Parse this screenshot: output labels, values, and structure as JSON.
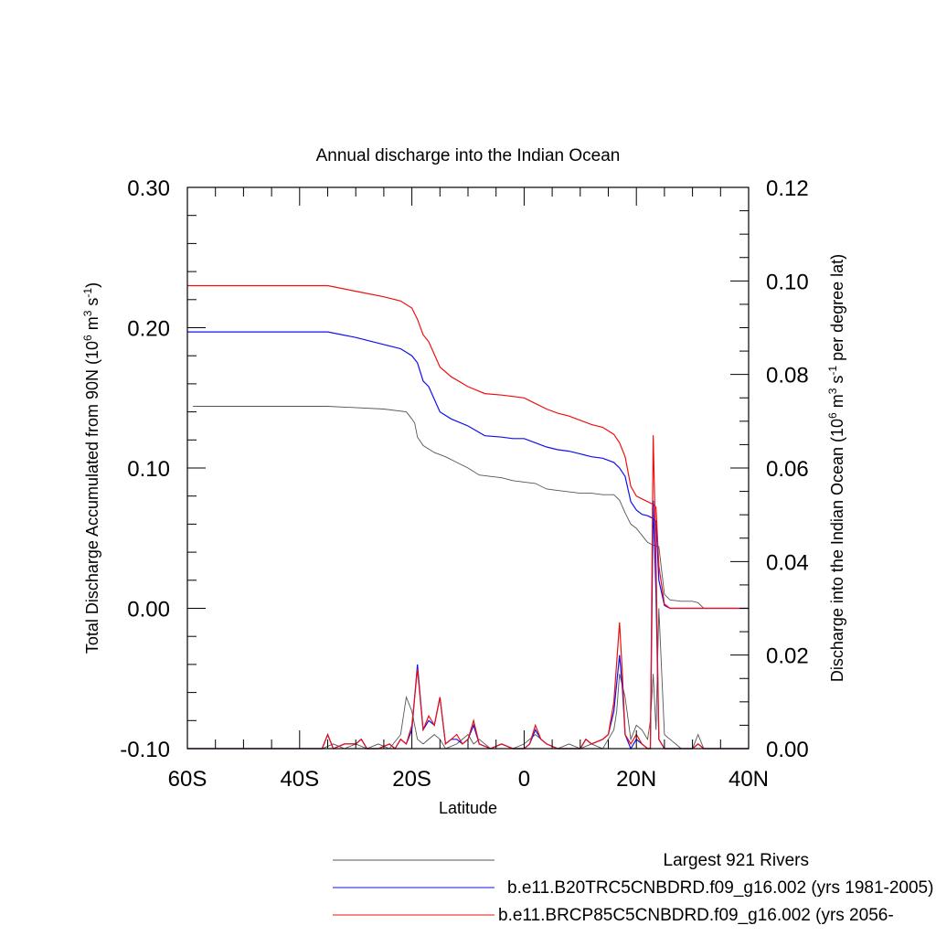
{
  "chart_data": {
    "type": "line",
    "title": "Annual discharge into the Indian Ocean",
    "xlabel": "Latitude",
    "ylabel_left": "Total Discharge Accumulated from 90N (10^6 m^3 s^-1)",
    "ylabel_right": "Discharge into the Indian Ocean (10^6 m^3 s^-1 per degree lat)",
    "xlim": [
      -60,
      40
    ],
    "ylim_left": [
      -0.1,
      0.3
    ],
    "ylim_right": [
      0.0,
      0.12
    ],
    "x_ticks": [
      {
        "value": -60,
        "label": "60S"
      },
      {
        "value": -40,
        "label": "40S"
      },
      {
        "value": -20,
        "label": "20S"
      },
      {
        "value": 0,
        "label": "0"
      },
      {
        "value": 20,
        "label": "20N"
      },
      {
        "value": 40,
        "label": "40N"
      }
    ],
    "y_left_ticks": [
      {
        "value": 0.3,
        "label": "0.30"
      },
      {
        "value": 0.2,
        "label": "0.20"
      },
      {
        "value": 0.1,
        "label": "0.10"
      },
      {
        "value": 0.0,
        "label": "0.00"
      },
      {
        "value": -0.1,
        "label": "-0.10"
      }
    ],
    "y_right_ticks": [
      {
        "value": 0.12,
        "label": "0.12"
      },
      {
        "value": 0.1,
        "label": "0.10"
      },
      {
        "value": 0.08,
        "label": "0.08"
      },
      {
        "value": 0.06,
        "label": "0.06"
      },
      {
        "value": 0.04,
        "label": "0.04"
      },
      {
        "value": 0.02,
        "label": "0.02"
      },
      {
        "value": 0.0,
        "label": "0.00"
      }
    ],
    "grid": false,
    "legend_position": "bottom",
    "series": [
      {
        "name": "Largest 921 Rivers",
        "color": "#555555",
        "axis": "left",
        "x": [
          -59,
          -35,
          -25,
          -21,
          -20,
          -19.5,
          -19,
          -18,
          -16,
          -14,
          -12,
          -10,
          -8,
          -6,
          -4,
          -2,
          0,
          2,
          4,
          6,
          8,
          10,
          12,
          14,
          16,
          17,
          18,
          19,
          20,
          21,
          22,
          23,
          24,
          25,
          26,
          28,
          30,
          31,
          32,
          40
        ],
        "values": [
          0.144,
          0.144,
          0.142,
          0.14,
          0.135,
          0.132,
          0.122,
          0.116,
          0.111,
          0.108,
          0.104,
          0.1,
          0.095,
          0.094,
          0.093,
          0.091,
          0.09,
          0.089,
          0.085,
          0.084,
          0.083,
          0.082,
          0.082,
          0.081,
          0.081,
          0.077,
          0.068,
          0.06,
          0.057,
          0.052,
          0.047,
          0.045,
          0.044,
          0.01,
          0.006,
          0.005,
          0.005,
          0.004,
          0.0,
          0.0
        ]
      },
      {
        "name": "b.e11.B20TRC5CNBDRD.f09_g16.002 (yrs 1981-2005)",
        "color": "#1010ee",
        "axis": "left",
        "x": [
          -60,
          -35,
          -30,
          -25,
          -22,
          -20,
          -19,
          -18,
          -17,
          -15,
          -13,
          -10,
          -7,
          -4,
          -2,
          0,
          2,
          4,
          6,
          8,
          10,
          12,
          14,
          16,
          17,
          18,
          19,
          20,
          21,
          22,
          23,
          23.5,
          24,
          25,
          26,
          40
        ],
        "values": [
          0.197,
          0.197,
          0.193,
          0.188,
          0.185,
          0.18,
          0.175,
          0.162,
          0.158,
          0.14,
          0.135,
          0.13,
          0.123,
          0.122,
          0.121,
          0.121,
          0.118,
          0.115,
          0.113,
          0.112,
          0.11,
          0.108,
          0.107,
          0.104,
          0.1,
          0.094,
          0.076,
          0.07,
          0.067,
          0.066,
          0.064,
          0.062,
          0.02,
          0.002,
          0.0,
          0.0
        ]
      },
      {
        "name": "b.e11.BRCP85C5CNBDRD.f09_g16.002 (yrs 2056-",
        "color": "#ee1010",
        "axis": "left",
        "x": [
          -60,
          -35,
          -30,
          -25,
          -22,
          -20,
          -19,
          -18,
          -17,
          -15,
          -13,
          -10,
          -7,
          -4,
          -2,
          0,
          2,
          4,
          6,
          8,
          10,
          12,
          14,
          16,
          17,
          18,
          19,
          20,
          21,
          22,
          23,
          23.5,
          24,
          25,
          26,
          40
        ],
        "values": [
          0.23,
          0.23,
          0.226,
          0.222,
          0.219,
          0.214,
          0.206,
          0.195,
          0.19,
          0.172,
          0.165,
          0.158,
          0.153,
          0.152,
          0.151,
          0.15,
          0.146,
          0.142,
          0.139,
          0.137,
          0.134,
          0.131,
          0.129,
          0.124,
          0.118,
          0.108,
          0.087,
          0.08,
          0.078,
          0.076,
          0.074,
          0.072,
          0.03,
          0.003,
          0.0,
          0.0
        ]
      },
      {
        "name": "Largest 921 Rivers",
        "color": "#555555",
        "axis": "right",
        "x": [
          -60,
          -36,
          -34,
          -32,
          -30,
          -28,
          -26,
          -24,
          -22,
          -21,
          -20,
          -19,
          -18,
          -16,
          -15,
          -14,
          -12,
          -10,
          -9,
          -8,
          -6,
          -4,
          -2,
          0,
          2,
          4,
          6,
          8,
          10,
          12,
          14,
          15,
          16,
          16.5,
          17,
          18,
          19,
          20,
          21,
          22,
          22.5,
          23,
          23.5,
          24,
          25,
          26,
          28,
          30,
          31,
          32,
          34,
          40
        ],
        "values": [
          0.0,
          0.0,
          0.001,
          0.0,
          0.001,
          0.0,
          0.001,
          0.0,
          0.003,
          0.011,
          0.008,
          0.002,
          0.001,
          0.003,
          0.002,
          0.0,
          0.001,
          0.003,
          0.001,
          0.002,
          0.0,
          0.001,
          0.0,
          0.001,
          0.003,
          0.001,
          0.0,
          0.001,
          0.0,
          0.001,
          0.0,
          0.002,
          0.004,
          0.008,
          0.016,
          0.011,
          0.002,
          0.005,
          0.004,
          0.002,
          0.006,
          0.016,
          0.004,
          0.03,
          0.003,
          0.002,
          0.0,
          0.0,
          0.003,
          0.0,
          0.0,
          0.0
        ]
      },
      {
        "name": "b.e11.B20TRC5CNBDRD.f09_g16.002 (yrs 1981-2005)",
        "color": "#1010ee",
        "axis": "right",
        "x": [
          -60,
          -36,
          -35,
          -34,
          -32,
          -30,
          -29,
          -28,
          -26,
          -24,
          -23,
          -22,
          -21,
          -20,
          -19,
          -18,
          -17,
          -16,
          -15,
          -14,
          -13,
          -12,
          -11,
          -10,
          -9,
          -8,
          -6,
          -4,
          -2,
          0,
          1,
          2,
          3,
          4,
          6,
          8,
          10,
          11,
          12,
          14,
          15,
          16,
          17,
          17.5,
          18,
          19,
          20,
          21,
          22,
          22.5,
          23,
          23.5,
          24,
          25,
          28,
          30,
          31,
          32,
          40
        ],
        "values": [
          0.0,
          0.0,
          0.003,
          0.0,
          0.001,
          0.001,
          0.002,
          0.0,
          0.0,
          0.001,
          0.0,
          0.002,
          0.001,
          0.004,
          0.018,
          0.004,
          0.006,
          0.005,
          0.011,
          0.001,
          0.002,
          0.002,
          0.001,
          0.002,
          0.005,
          0.001,
          0.0,
          0.001,
          0.0,
          0.0,
          0.001,
          0.004,
          0.002,
          0.001,
          0.0,
          0.0,
          0.0,
          0.002,
          0.001,
          0.002,
          0.003,
          0.008,
          0.02,
          0.013,
          0.003,
          0.0,
          0.002,
          0.001,
          0.0,
          0.0,
          0.053,
          0.033,
          0.002,
          0.0,
          0.0,
          0.0,
          0.001,
          0.0,
          0.0
        ]
      },
      {
        "name": "b.e11.BRCP85C5CNBDRD.f09_g16.002 (yrs 2056-",
        "color": "#ee1010",
        "axis": "right",
        "x": [
          -60,
          -36,
          -35,
          -34,
          -32,
          -30,
          -29,
          -28,
          -26,
          -24,
          -23,
          -22,
          -21,
          -20,
          -19,
          -18,
          -17,
          -16,
          -15,
          -14,
          -13,
          -12,
          -11,
          -10,
          -9,
          -8,
          -6,
          -4,
          -2,
          0,
          1,
          2,
          3,
          4,
          6,
          8,
          10,
          11,
          12,
          14,
          15,
          16,
          17,
          17.5,
          18,
          19,
          20,
          21,
          22,
          22.5,
          23,
          23.5,
          24,
          25,
          28,
          30,
          31,
          32,
          40
        ],
        "values": [
          0.0,
          0.0,
          0.003,
          0.0,
          0.001,
          0.001,
          0.002,
          0.0,
          0.0,
          0.001,
          0.0,
          0.002,
          0.001,
          0.005,
          0.017,
          0.004,
          0.007,
          0.005,
          0.011,
          0.001,
          0.002,
          0.003,
          0.001,
          0.002,
          0.006,
          0.001,
          0.0,
          0.001,
          0.0,
          0.0,
          0.001,
          0.005,
          0.002,
          0.001,
          0.0,
          0.0,
          0.0,
          0.002,
          0.001,
          0.002,
          0.003,
          0.01,
          0.027,
          0.016,
          0.003,
          0.001,
          0.003,
          0.001,
          0.0,
          0.0,
          0.067,
          0.04,
          0.002,
          0.0,
          0.0,
          0.0,
          0.001,
          0.0,
          0.0
        ]
      }
    ],
    "legend": [
      {
        "label": "Largest 921 Rivers",
        "color": "#555555"
      },
      {
        "label": "b.e11.B20TRC5CNBDRD.f09_g16.002 (yrs 1981-2005)",
        "color": "#1010ee"
      },
      {
        "label": "b.e11.BRCP85C5CNBDRD.f09_g16.002 (yrs 2056-",
        "color": "#ee1010"
      }
    ]
  }
}
